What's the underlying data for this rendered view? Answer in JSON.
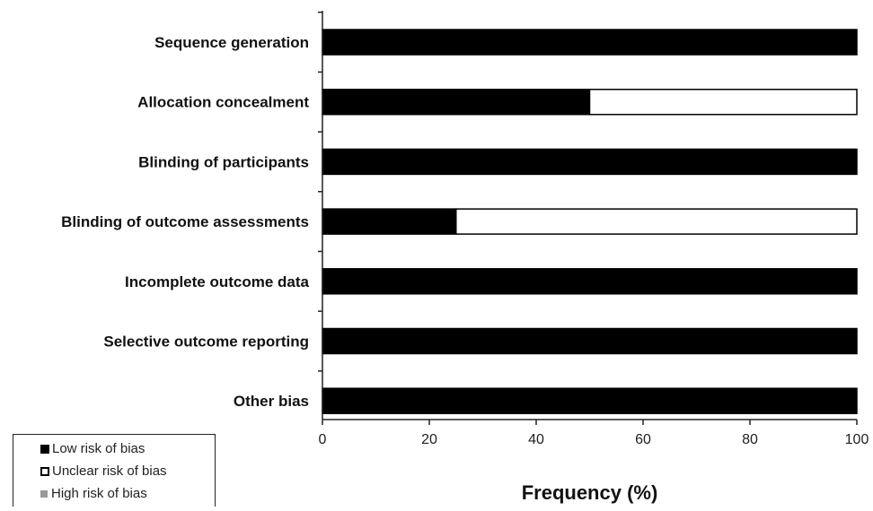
{
  "chart_data": {
    "type": "bar",
    "orientation": "horizontal",
    "stacked": true,
    "categories": [
      "Sequence generation",
      "Allocation concealment",
      "Blinding of participants",
      "Blinding of outcome assessments",
      "Incomplete outcome data",
      "Selective outcome reporting",
      "Other bias"
    ],
    "series": [
      {
        "name": "Low risk of bias",
        "color": "#000000",
        "values": [
          100,
          50,
          100,
          25,
          100,
          100,
          100
        ]
      },
      {
        "name": "Unclear risk of bias",
        "color": "#ffffff",
        "values": [
          0,
          50,
          0,
          75,
          0,
          0,
          0
        ]
      },
      {
        "name": "High risk of bias",
        "color": "#999999",
        "values": [
          0,
          0,
          0,
          0,
          0,
          0,
          0
        ]
      }
    ],
    "xlabel": "Frequency (%)",
    "xlim": [
      0,
      100
    ],
    "xticks": [
      "0",
      "20",
      "40",
      "60",
      "80",
      "100"
    ],
    "grid": false,
    "legend_position": "bottom-left"
  }
}
